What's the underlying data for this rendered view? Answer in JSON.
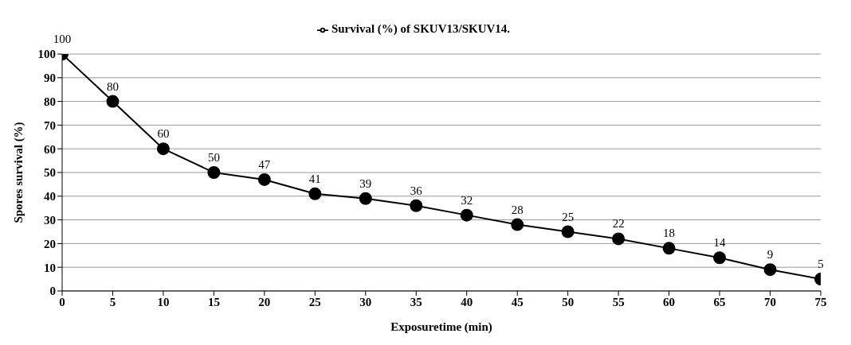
{
  "chart_data": {
    "type": "line",
    "xlabel": "Exposuretime (min)",
    "ylabel": "Spores survival (%)",
    "x": [
      0,
      5,
      10,
      15,
      20,
      25,
      30,
      35,
      40,
      45,
      50,
      55,
      60,
      65,
      70,
      75
    ],
    "series": [
      {
        "name": "Survival (%) of SKUV13/SKUV14.",
        "color": "#000000",
        "values": [
          100,
          80,
          60,
          50,
          47,
          41,
          39,
          36,
          32,
          28,
          25,
          22,
          18,
          14,
          9,
          5
        ]
      }
    ],
    "xlim": [
      0,
      75
    ],
    "xticks": [
      0,
      5,
      10,
      15,
      20,
      25,
      30,
      35,
      40,
      45,
      50,
      55,
      60,
      65,
      70,
      75
    ],
    "ylim": [
      0,
      100
    ],
    "yticks": [
      0,
      10,
      20,
      30,
      40,
      50,
      60,
      70,
      80,
      90,
      100
    ],
    "grid": "y",
    "legend": "top",
    "marker": "circle",
    "line_style": "solid",
    "data_labels": true
  }
}
